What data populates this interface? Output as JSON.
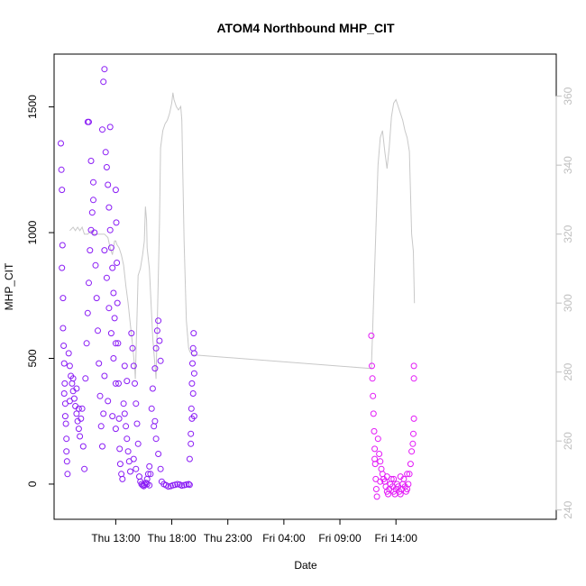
{
  "chart_data": {
    "type": "scatter",
    "title": "ATOM4 Northbound MHP_CIT",
    "xlabel": "Date",
    "ylabel": "MHP_CIT",
    "xlim": [
      7.5,
      52.3
    ],
    "ylim": [
      -140,
      1710
    ],
    "y2lim": [
      237.3,
      372.2
    ],
    "x_ticks": [
      {
        "value": 13,
        "label": "Thu 13:00"
      },
      {
        "value": 18,
        "label": "Thu 18:00"
      },
      {
        "value": 23,
        "label": "Thu 23:00"
      },
      {
        "value": 28,
        "label": "Fri 04:00"
      },
      {
        "value": 33,
        "label": "Fri 09:00"
      },
      {
        "value": 38,
        "label": "Fri 14:00"
      }
    ],
    "y_ticks": [
      0,
      500,
      1000,
      1500
    ],
    "y2_ticks": [
      240,
      260,
      280,
      300,
      320,
      340,
      360
    ],
    "grid": false,
    "colors": {
      "points_early": "#8a1cf5",
      "points_late": "#e319f7",
      "right_axis_line": "#c8c8c8",
      "right_axis_text": "#bfbfbf"
    },
    "series": [
      {
        "kind": "points",
        "axis": "left",
        "color": "#8a1cf5",
        "values": [
          [
            8.1,
            1355
          ],
          [
            8.15,
            1250
          ],
          [
            8.2,
            1170
          ],
          [
            8.25,
            950
          ],
          [
            8.3,
            740
          ],
          [
            8.35,
            550
          ],
          [
            8.4,
            480
          ],
          [
            8.45,
            400
          ],
          [
            8.5,
            320
          ],
          [
            8.55,
            240
          ],
          [
            8.6,
            180
          ],
          [
            8.65,
            90
          ],
          [
            8.7,
            40
          ],
          [
            8.2,
            860
          ],
          [
            8.3,
            620
          ],
          [
            8.4,
            360
          ],
          [
            8.5,
            270
          ],
          [
            8.6,
            130
          ],
          [
            8.8,
            520
          ],
          [
            8.9,
            470
          ],
          [
            9.0,
            430
          ],
          [
            9.1,
            400
          ],
          [
            9.2,
            370
          ],
          [
            9.3,
            340
          ],
          [
            9.4,
            310
          ],
          [
            9.5,
            280
          ],
          [
            9.6,
            250
          ],
          [
            9.7,
            220
          ],
          [
            9.8,
            190
          ],
          [
            8.9,
            330
          ],
          [
            9.2,
            420
          ],
          [
            9.5,
            380
          ],
          [
            9.7,
            300
          ],
          [
            9.9,
            260
          ],
          [
            10.0,
            300
          ],
          [
            10.1,
            150
          ],
          [
            10.2,
            60
          ],
          [
            10.3,
            420
          ],
          [
            10.4,
            560
          ],
          [
            10.5,
            680
          ],
          [
            10.6,
            800
          ],
          [
            10.7,
            930
          ],
          [
            10.8,
            1010
          ],
          [
            10.9,
            1080
          ],
          [
            11.0,
            1130
          ],
          [
            10.6,
            1440
          ],
          [
            10.8,
            1285
          ],
          [
            11.0,
            1200
          ],
          [
            10.5,
            1440
          ],
          [
            11.1,
            1000
          ],
          [
            11.2,
            870
          ],
          [
            11.3,
            740
          ],
          [
            11.4,
            610
          ],
          [
            11.5,
            480
          ],
          [
            11.6,
            350
          ],
          [
            11.7,
            230
          ],
          [
            11.8,
            150
          ],
          [
            11.9,
            280
          ],
          [
            12.0,
            430
          ],
          [
            11.8,
            1410
          ],
          [
            11.9,
            1600
          ],
          [
            12.0,
            1650
          ],
          [
            12.1,
            1320
          ],
          [
            12.2,
            1260
          ],
          [
            12.3,
            1190
          ],
          [
            12.4,
            1100
          ],
          [
            12.5,
            1010
          ],
          [
            12.6,
            940
          ],
          [
            12.7,
            860
          ],
          [
            12.8,
            760
          ],
          [
            12.9,
            660
          ],
          [
            13.0,
            560
          ],
          [
            12.5,
            1420
          ],
          [
            12.0,
            930
          ],
          [
            12.2,
            820
          ],
          [
            12.4,
            700
          ],
          [
            12.6,
            600
          ],
          [
            12.8,
            500
          ],
          [
            13.0,
            400
          ],
          [
            12.3,
            330
          ],
          [
            12.7,
            270
          ],
          [
            13.0,
            220
          ],
          [
            13.0,
            1170
          ],
          [
            13.05,
            1040
          ],
          [
            13.1,
            880
          ],
          [
            13.15,
            720
          ],
          [
            13.2,
            560
          ],
          [
            13.25,
            400
          ],
          [
            13.3,
            260
          ],
          [
            13.35,
            140
          ],
          [
            13.4,
            80
          ],
          [
            13.5,
            40
          ],
          [
            13.6,
            20
          ],
          [
            13.7,
            320
          ],
          [
            13.8,
            280
          ],
          [
            13.9,
            230
          ],
          [
            14.0,
            180
          ],
          [
            14.1,
            130
          ],
          [
            14.2,
            90
          ],
          [
            14.3,
            50
          ],
          [
            13.8,
            470
          ],
          [
            14.0,
            410
          ],
          [
            14.4,
            600
          ],
          [
            14.5,
            540
          ],
          [
            14.6,
            470
          ],
          [
            14.7,
            400
          ],
          [
            14.8,
            320
          ],
          [
            14.9,
            240
          ],
          [
            15.0,
            160
          ],
          [
            14.6,
            100
          ],
          [
            14.8,
            60
          ],
          [
            15.1,
            30
          ],
          [
            15.2,
            10
          ],
          [
            15.3,
            0
          ],
          [
            15.4,
            -5
          ],
          [
            15.5,
            -8
          ],
          [
            15.6,
            -3
          ],
          [
            15.7,
            5
          ],
          [
            15.8,
            20
          ],
          [
            15.9,
            40
          ],
          [
            16.0,
            70
          ],
          [
            16.1,
            40
          ],
          [
            15.8,
            0
          ],
          [
            16.0,
            -5
          ],
          [
            16.2,
            300
          ],
          [
            16.3,
            380
          ],
          [
            16.5,
            460
          ],
          [
            16.6,
            540
          ],
          [
            16.7,
            610
          ],
          [
            16.8,
            650
          ],
          [
            16.9,
            570
          ],
          [
            17.0,
            490
          ],
          [
            16.4,
            230
          ],
          [
            16.6,
            180
          ],
          [
            16.8,
            120
          ],
          [
            17.0,
            60
          ],
          [
            16.5,
            250
          ],
          [
            17.1,
            10
          ],
          [
            17.3,
            0
          ],
          [
            17.5,
            -5
          ],
          [
            17.7,
            -10
          ],
          [
            17.9,
            -8
          ],
          [
            18.1,
            -5
          ],
          [
            18.3,
            -3
          ],
          [
            18.5,
            0
          ],
          [
            18.7,
            -2
          ],
          [
            18.9,
            -6
          ],
          [
            19.1,
            -4
          ],
          [
            19.3,
            -2
          ],
          [
            19.5,
            0
          ],
          [
            19.6,
            -3
          ],
          [
            19.6,
            100
          ],
          [
            19.7,
            200
          ],
          [
            19.75,
            300
          ],
          [
            19.8,
            400
          ],
          [
            19.85,
            480
          ],
          [
            19.9,
            540
          ],
          [
            19.95,
            600
          ],
          [
            20.0,
            520
          ],
          [
            20.0,
            440
          ],
          [
            19.7,
            160
          ],
          [
            19.8,
            260
          ],
          [
            19.9,
            360
          ],
          [
            20.0,
            270
          ]
        ]
      },
      {
        "kind": "points",
        "axis": "left",
        "color": "#e319f7",
        "values": [
          [
            35.8,
            590
          ],
          [
            35.85,
            470
          ],
          [
            35.9,
            420
          ],
          [
            35.95,
            350
          ],
          [
            36.0,
            280
          ],
          [
            36.05,
            210
          ],
          [
            36.1,
            140
          ],
          [
            36.15,
            80
          ],
          [
            36.2,
            20
          ],
          [
            36.25,
            -20
          ],
          [
            36.3,
            -50
          ],
          [
            36.4,
            180
          ],
          [
            36.5,
            120
          ],
          [
            36.6,
            90
          ],
          [
            36.7,
            60
          ],
          [
            36.8,
            40
          ],
          [
            36.9,
            20
          ],
          [
            37.0,
            10
          ],
          [
            37.1,
            -10
          ],
          [
            37.2,
            -30
          ],
          [
            37.3,
            -40
          ],
          [
            37.4,
            -20
          ],
          [
            37.5,
            0
          ],
          [
            37.6,
            20
          ],
          [
            37.7,
            -10
          ],
          [
            37.8,
            -30
          ],
          [
            37.9,
            -40
          ],
          [
            38.0,
            -20
          ],
          [
            38.1,
            0
          ],
          [
            38.2,
            -10
          ],
          [
            38.3,
            -30
          ],
          [
            38.4,
            -40
          ],
          [
            38.5,
            -20
          ],
          [
            38.6,
            0
          ],
          [
            38.7,
            20
          ],
          [
            38.8,
            -10
          ],
          [
            38.9,
            -30
          ],
          [
            39.0,
            -20
          ],
          [
            39.1,
            0
          ],
          [
            39.2,
            40
          ],
          [
            39.3,
            80
          ],
          [
            39.4,
            130
          ],
          [
            39.5,
            160
          ],
          [
            39.55,
            200
          ],
          [
            39.6,
            260
          ],
          [
            39.6,
            420
          ],
          [
            39.6,
            470
          ],
          [
            36.1,
            100
          ],
          [
            36.6,
            10
          ],
          [
            37.2,
            30
          ],
          [
            37.8,
            20
          ],
          [
            38.4,
            30
          ],
          [
            39.0,
            40
          ]
        ]
      },
      {
        "kind": "line",
        "axis": "right",
        "color": "#c8c8c8",
        "values": [
          [
            8.9,
            321
          ],
          [
            9.2,
            322
          ],
          [
            9.4,
            321
          ],
          [
            9.6,
            322
          ],
          [
            9.8,
            321
          ],
          [
            10.0,
            322
          ],
          [
            10.2,
            320
          ],
          [
            10.5,
            320
          ],
          [
            10.8,
            321
          ],
          [
            11.0,
            320
          ],
          [
            11.5,
            320
          ],
          [
            12.0,
            320
          ],
          [
            12.3,
            319
          ],
          [
            12.5,
            316
          ],
          [
            12.7,
            314
          ],
          [
            12.9,
            318
          ],
          [
            13.0,
            318
          ],
          [
            13.1,
            317
          ],
          [
            13.3,
            316
          ],
          [
            13.5,
            314
          ],
          [
            13.7,
            311
          ],
          [
            13.9,
            305
          ],
          [
            14.1,
            300
          ],
          [
            14.3,
            294
          ],
          [
            14.5,
            288
          ],
          [
            14.7,
            281
          ],
          [
            14.75,
            278
          ],
          [
            15.0,
            308
          ],
          [
            15.2,
            310
          ],
          [
            15.4,
            314
          ],
          [
            15.55,
            318
          ],
          [
            15.65,
            328
          ],
          [
            15.75,
            324
          ],
          [
            15.8,
            316
          ],
          [
            16.0,
            310
          ],
          [
            16.3,
            290
          ],
          [
            16.6,
            278
          ],
          [
            16.9,
            323
          ],
          [
            17.0,
            345
          ],
          [
            17.2,
            350
          ],
          [
            17.4,
            352
          ],
          [
            17.6,
            353
          ],
          [
            17.8,
            355
          ],
          [
            18.0,
            358
          ],
          [
            18.1,
            361
          ],
          [
            18.2,
            359
          ],
          [
            18.4,
            357
          ],
          [
            18.6,
            356
          ],
          [
            18.8,
            357
          ],
          [
            18.9,
            353
          ],
          [
            19.1,
            318
          ],
          [
            19.3,
            295
          ],
          [
            19.5,
            287
          ],
          [
            19.6,
            286
          ],
          [
            19.8,
            285
          ],
          [
            35.8,
            281
          ],
          [
            35.9,
            290
          ],
          [
            36.0,
            300
          ],
          [
            36.2,
            320
          ],
          [
            36.4,
            340
          ],
          [
            36.6,
            348
          ],
          [
            36.8,
            350
          ],
          [
            37.0,
            344
          ],
          [
            37.2,
            339
          ],
          [
            37.4,
            345
          ],
          [
            37.6,
            354
          ],
          [
            37.8,
            358
          ],
          [
            38.0,
            359
          ],
          [
            38.2,
            357
          ],
          [
            38.4,
            355
          ],
          [
            38.6,
            353
          ],
          [
            38.8,
            350
          ],
          [
            39.0,
            348
          ],
          [
            39.2,
            344
          ],
          [
            39.4,
            320
          ],
          [
            39.55,
            315
          ],
          [
            39.65,
            300
          ]
        ]
      }
    ]
  }
}
